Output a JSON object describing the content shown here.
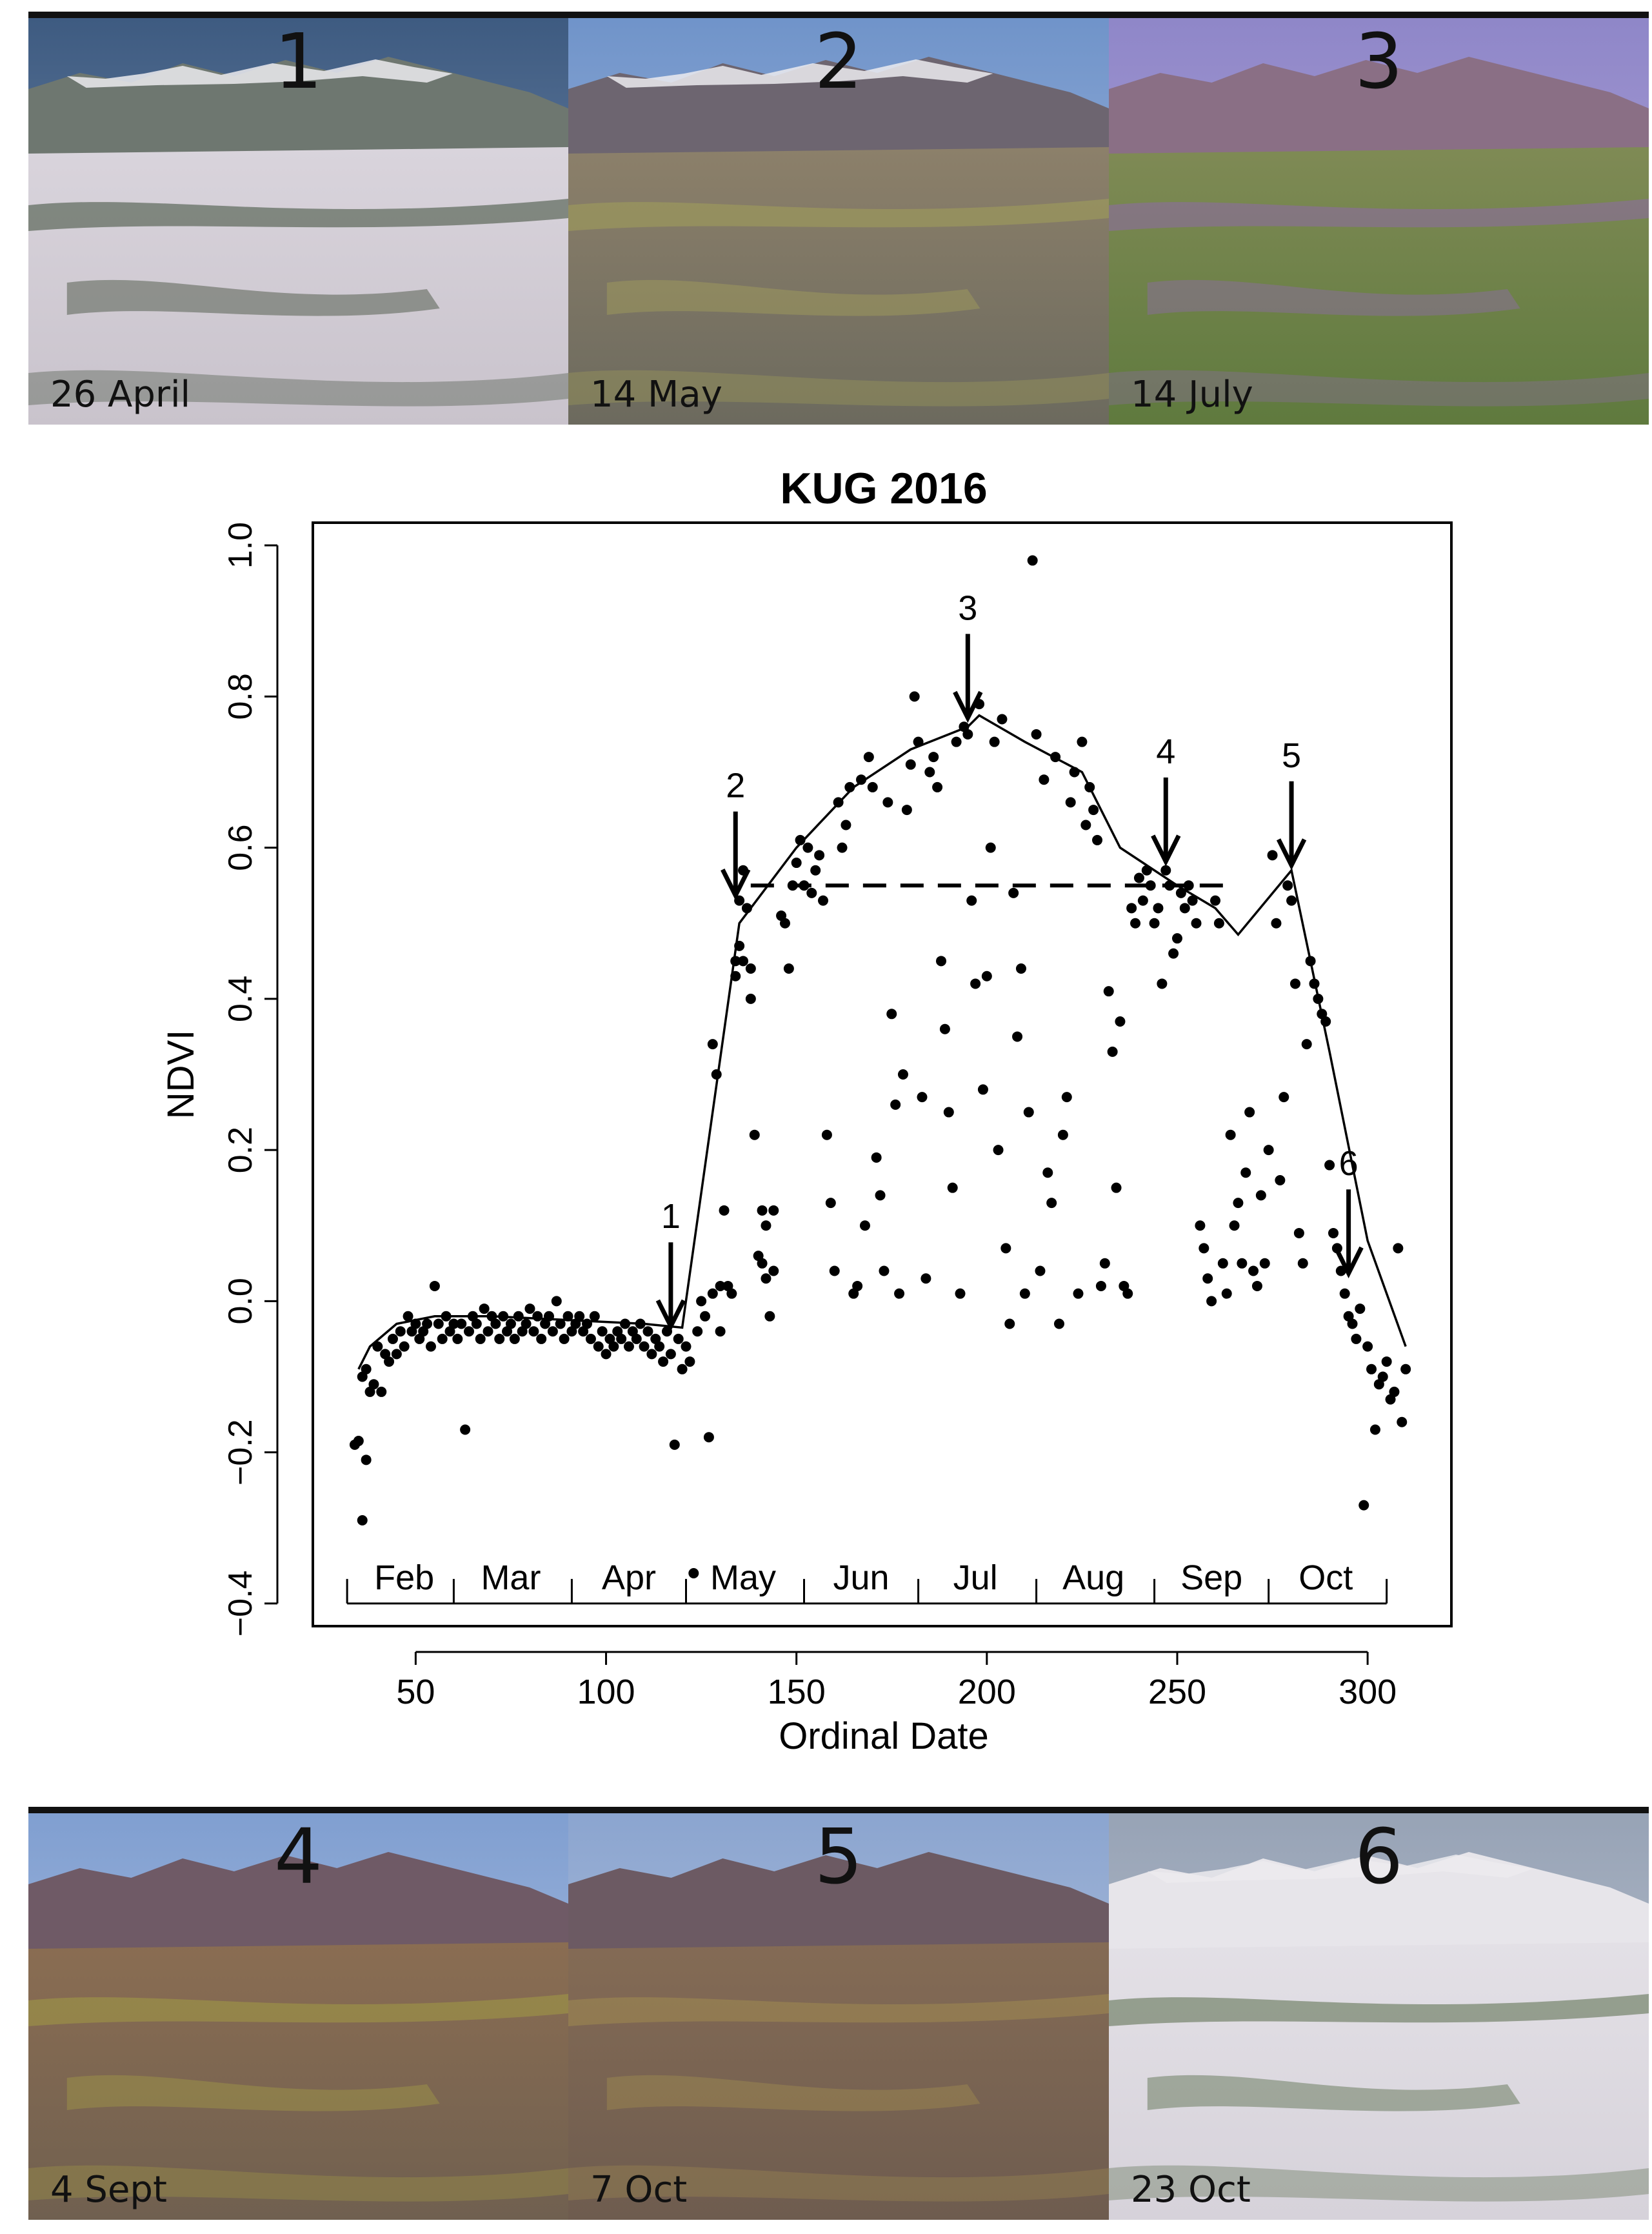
{
  "photos_top": [
    {
      "number": "1",
      "date": "26 April"
    },
    {
      "number": "2",
      "date": "14 May"
    },
    {
      "number": "3",
      "date": "14 July"
    }
  ],
  "photos_bottom": [
    {
      "number": "4",
      "date": "4 Sept"
    },
    {
      "number": "5",
      "date": "7 Oct"
    },
    {
      "number": "6",
      "date": "23 Oct"
    }
  ],
  "colors": {
    "points": "#000000",
    "line": "#000000",
    "frame": "#000000"
  },
  "chart_data": {
    "type": "scatter",
    "title": "KUG  2016",
    "xlabel": "Ordinal Date",
    "ylabel": "NDVI",
    "xlim": [
      23,
      322
    ],
    "ylim": [
      -0.43,
      1.03
    ],
    "xticks": [
      50,
      100,
      150,
      200,
      250,
      300
    ],
    "yticks": [
      -0.4,
      -0.2,
      0.0,
      0.2,
      0.4,
      0.6,
      0.8,
      1.0
    ],
    "ytick_labels": [
      "−0.4",
      "−0.2",
      "0.0",
      "0.2",
      "0.4",
      "0.6",
      "0.8",
      "1.0"
    ],
    "month_labels": [
      {
        "label": "Feb",
        "x": 47
      },
      {
        "label": "Mar",
        "x": 75
      },
      {
        "label": "Apr",
        "x": 106
      },
      {
        "label": "May",
        "x": 136
      },
      {
        "label": "Jun",
        "x": 167
      },
      {
        "label": "Jul",
        "x": 197
      },
      {
        "label": "Aug",
        "x": 228
      },
      {
        "label": "Sep",
        "x": 259
      },
      {
        "label": "Oct",
        "x": 289
      }
    ],
    "month_ticks": [
      32,
      60,
      91,
      121,
      152,
      182,
      213,
      244,
      274,
      305
    ],
    "fitted_curve": {
      "x": [
        35,
        38,
        45,
        55,
        70,
        90,
        110,
        120,
        135,
        150,
        165,
        180,
        195,
        198,
        210,
        225,
        235,
        250,
        260,
        266,
        280,
        290,
        300,
        310
      ],
      "y": [
        -0.09,
        -0.06,
        -0.03,
        -0.02,
        -0.02,
        -0.025,
        -0.03,
        -0.035,
        0.5,
        0.6,
        0.68,
        0.73,
        0.76,
        0.775,
        0.74,
        0.7,
        0.6,
        0.55,
        0.52,
        0.485,
        0.57,
        0.33,
        0.08,
        -0.06
      ]
    },
    "threshold_line": {
      "y": 0.55,
      "x_start": 138,
      "x_end": 262
    },
    "annotations": [
      {
        "label": "1",
        "x": 117,
        "y": -0.04
      },
      {
        "label": "2",
        "x": 134,
        "y": 0.53
      },
      {
        "label": "3",
        "x": 195,
        "y": 0.765
      },
      {
        "label": "4",
        "x": 247,
        "y": 0.575
      },
      {
        "label": "5",
        "x": 280,
        "y": 0.57
      },
      {
        "label": "6",
        "x": 295,
        "y": 0.03
      }
    ],
    "points": [
      [
        34,
        -0.19
      ],
      [
        35,
        -0.185
      ],
      [
        36,
        -0.29
      ],
      [
        37,
        -0.21
      ],
      [
        36,
        -0.1
      ],
      [
        37,
        -0.09
      ],
      [
        38,
        -0.12
      ],
      [
        39,
        -0.11
      ],
      [
        40,
        -0.06
      ],
      [
        41,
        -0.12
      ],
      [
        42,
        -0.07
      ],
      [
        43,
        -0.08
      ],
      [
        44,
        -0.05
      ],
      [
        45,
        -0.07
      ],
      [
        46,
        -0.04
      ],
      [
        47,
        -0.06
      ],
      [
        48,
        -0.02
      ],
      [
        49,
        -0.04
      ],
      [
        50,
        -0.03
      ],
      [
        51,
        -0.05
      ],
      [
        52,
        -0.04
      ],
      [
        53,
        -0.03
      ],
      [
        54,
        -0.06
      ],
      [
        55,
        0.02
      ],
      [
        56,
        -0.03
      ],
      [
        57,
        -0.05
      ],
      [
        58,
        -0.02
      ],
      [
        59,
        -0.04
      ],
      [
        60,
        -0.03
      ],
      [
        61,
        -0.05
      ],
      [
        62,
        -0.03
      ],
      [
        63,
        -0.17
      ],
      [
        64,
        -0.04
      ],
      [
        65,
        -0.02
      ],
      [
        66,
        -0.03
      ],
      [
        67,
        -0.05
      ],
      [
        68,
        -0.01
      ],
      [
        69,
        -0.04
      ],
      [
        70,
        -0.02
      ],
      [
        71,
        -0.03
      ],
      [
        72,
        -0.05
      ],
      [
        73,
        -0.02
      ],
      [
        74,
        -0.04
      ],
      [
        75,
        -0.03
      ],
      [
        76,
        -0.05
      ],
      [
        77,
        -0.02
      ],
      [
        78,
        -0.04
      ],
      [
        79,
        -0.03
      ],
      [
        80,
        -0.01
      ],
      [
        81,
        -0.04
      ],
      [
        82,
        -0.02
      ],
      [
        83,
        -0.05
      ],
      [
        84,
        -0.03
      ],
      [
        85,
        -0.02
      ],
      [
        86,
        -0.04
      ],
      [
        87,
        0.0
      ],
      [
        88,
        -0.03
      ],
      [
        89,
        -0.05
      ],
      [
        90,
        -0.02
      ],
      [
        91,
        -0.04
      ],
      [
        92,
        -0.03
      ],
      [
        93,
        -0.02
      ],
      [
        94,
        -0.04
      ],
      [
        95,
        -0.03
      ],
      [
        96,
        -0.05
      ],
      [
        97,
        -0.02
      ],
      [
        98,
        -0.06
      ],
      [
        99,
        -0.04
      ],
      [
        100,
        -0.07
      ],
      [
        101,
        -0.05
      ],
      [
        102,
        -0.06
      ],
      [
        103,
        -0.04
      ],
      [
        104,
        -0.05
      ],
      [
        105,
        -0.03
      ],
      [
        106,
        -0.06
      ],
      [
        107,
        -0.04
      ],
      [
        108,
        -0.05
      ],
      [
        109,
        -0.03
      ],
      [
        110,
        -0.06
      ],
      [
        111,
        -0.04
      ],
      [
        112,
        -0.07
      ],
      [
        113,
        -0.05
      ],
      [
        114,
        -0.06
      ],
      [
        115,
        -0.08
      ],
      [
        116,
        -0.04
      ],
      [
        117,
        -0.07
      ],
      [
        118,
        -0.19
      ],
      [
        119,
        -0.05
      ],
      [
        120,
        -0.09
      ],
      [
        121,
        -0.06
      ],
      [
        122,
        -0.08
      ],
      [
        123,
        -0.36
      ],
      [
        124,
        -0.04
      ],
      [
        125,
        0.0
      ],
      [
        126,
        -0.02
      ],
      [
        127,
        -0.18
      ],
      [
        128,
        0.01
      ],
      [
        128,
        0.34
      ],
      [
        129,
        0.3
      ],
      [
        130,
        0.02
      ],
      [
        130,
        -0.04
      ],
      [
        131,
        0.12
      ],
      [
        132,
        0.02
      ],
      [
        133,
        0.01
      ],
      [
        134,
        0.45
      ],
      [
        134,
        0.43
      ],
      [
        135,
        0.47
      ],
      [
        135,
        0.53
      ],
      [
        136,
        0.45
      ],
      [
        136,
        0.57
      ],
      [
        137,
        0.52
      ],
      [
        138,
        0.4
      ],
      [
        138,
        0.44
      ],
      [
        139,
        0.22
      ],
      [
        140,
        0.06
      ],
      [
        141,
        0.05
      ],
      [
        141,
        0.12
      ],
      [
        142,
        0.03
      ],
      [
        142,
        0.1
      ],
      [
        143,
        -0.02
      ],
      [
        144,
        0.04
      ],
      [
        144,
        0.12
      ],
      [
        146,
        0.51
      ],
      [
        147,
        0.5
      ],
      [
        148,
        0.44
      ],
      [
        149,
        0.55
      ],
      [
        150,
        0.58
      ],
      [
        151,
        0.61
      ],
      [
        152,
        0.55
      ],
      [
        153,
        0.6
      ],
      [
        154,
        0.54
      ],
      [
        155,
        0.57
      ],
      [
        156,
        0.59
      ],
      [
        157,
        0.53
      ],
      [
        158,
        0.22
      ],
      [
        159,
        0.13
      ],
      [
        160,
        0.04
      ],
      [
        161,
        0.66
      ],
      [
        162,
        0.6
      ],
      [
        163,
        0.63
      ],
      [
        164,
        0.68
      ],
      [
        165,
        0.01
      ],
      [
        166,
        0.02
      ],
      [
        167,
        0.69
      ],
      [
        168,
        0.1
      ],
      [
        169,
        0.72
      ],
      [
        170,
        0.68
      ],
      [
        171,
        0.19
      ],
      [
        172,
        0.14
      ],
      [
        173,
        0.04
      ],
      [
        174,
        0.66
      ],
      [
        175,
        0.38
      ],
      [
        176,
        0.26
      ],
      [
        177,
        0.01
      ],
      [
        178,
        0.3
      ],
      [
        179,
        0.65
      ],
      [
        180,
        0.71
      ],
      [
        181,
        0.8
      ],
      [
        182,
        0.74
      ],
      [
        183,
        0.27
      ],
      [
        184,
        0.03
      ],
      [
        185,
        0.7
      ],
      [
        186,
        0.72
      ],
      [
        187,
        0.68
      ],
      [
        188,
        0.45
      ],
      [
        189,
        0.36
      ],
      [
        190,
        0.25
      ],
      [
        191,
        0.15
      ],
      [
        192,
        0.74
      ],
      [
        193,
        0.01
      ],
      [
        194,
        0.76
      ],
      [
        195,
        0.75
      ],
      [
        196,
        0.53
      ],
      [
        197,
        0.42
      ],
      [
        198,
        0.79
      ],
      [
        199,
        0.28
      ],
      [
        200,
        0.43
      ],
      [
        201,
        0.6
      ],
      [
        202,
        0.74
      ],
      [
        203,
        0.2
      ],
      [
        204,
        0.77
      ],
      [
        205,
        0.07
      ],
      [
        206,
        -0.03
      ],
      [
        207,
        0.54
      ],
      [
        208,
        0.35
      ],
      [
        209,
        0.44
      ],
      [
        210,
        0.01
      ],
      [
        211,
        0.25
      ],
      [
        212,
        0.98
      ],
      [
        213,
        0.75
      ],
      [
        214,
        0.04
      ],
      [
        215,
        0.69
      ],
      [
        216,
        0.17
      ],
      [
        217,
        0.13
      ],
      [
        218,
        0.72
      ],
      [
        219,
        -0.03
      ],
      [
        220,
        0.22
      ],
      [
        221,
        0.27
      ],
      [
        222,
        0.66
      ],
      [
        223,
        0.7
      ],
      [
        224,
        0.01
      ],
      [
        225,
        0.74
      ],
      [
        226,
        0.63
      ],
      [
        227,
        0.68
      ],
      [
        228,
        0.65
      ],
      [
        229,
        0.61
      ],
      [
        230,
        0.02
      ],
      [
        231,
        0.05
      ],
      [
        232,
        0.41
      ],
      [
        233,
        0.33
      ],
      [
        234,
        0.15
      ],
      [
        235,
        0.37
      ],
      [
        236,
        0.02
      ],
      [
        237,
        0.01
      ],
      [
        238,
        0.52
      ],
      [
        239,
        0.5
      ],
      [
        240,
        0.56
      ],
      [
        241,
        0.53
      ],
      [
        242,
        0.57
      ],
      [
        243,
        0.55
      ],
      [
        244,
        0.5
      ],
      [
        245,
        0.52
      ],
      [
        246,
        0.42
      ],
      [
        247,
        0.57
      ],
      [
        248,
        0.55
      ],
      [
        249,
        0.46
      ],
      [
        250,
        0.48
      ],
      [
        251,
        0.54
      ],
      [
        252,
        0.52
      ],
      [
        253,
        0.55
      ],
      [
        254,
        0.53
      ],
      [
        255,
        0.5
      ],
      [
        256,
        0.1
      ],
      [
        257,
        0.07
      ],
      [
        258,
        0.03
      ],
      [
        259,
        0.0
      ],
      [
        260,
        0.53
      ],
      [
        261,
        0.5
      ],
      [
        262,
        0.05
      ],
      [
        263,
        0.01
      ],
      [
        264,
        0.22
      ],
      [
        265,
        0.1
      ],
      [
        266,
        0.13
      ],
      [
        267,
        0.05
      ],
      [
        268,
        0.17
      ],
      [
        269,
        0.25
      ],
      [
        270,
        0.04
      ],
      [
        271,
        0.02
      ],
      [
        272,
        0.14
      ],
      [
        273,
        0.05
      ],
      [
        274,
        0.2
      ],
      [
        275,
        0.59
      ],
      [
        276,
        0.5
      ],
      [
        277,
        0.16
      ],
      [
        278,
        0.27
      ],
      [
        279,
        0.55
      ],
      [
        280,
        0.53
      ],
      [
        281,
        0.42
      ],
      [
        282,
        0.09
      ],
      [
        283,
        0.05
      ],
      [
        284,
        0.34
      ],
      [
        285,
        0.45
      ],
      [
        286,
        0.42
      ],
      [
        287,
        0.4
      ],
      [
        288,
        0.38
      ],
      [
        289,
        0.37
      ],
      [
        290,
        0.18
      ],
      [
        291,
        0.09
      ],
      [
        292,
        0.07
      ],
      [
        293,
        0.04
      ],
      [
        294,
        0.01
      ],
      [
        295,
        -0.02
      ],
      [
        296,
        -0.03
      ],
      [
        297,
        -0.05
      ],
      [
        298,
        -0.01
      ],
      [
        299,
        -0.27
      ],
      [
        300,
        -0.06
      ],
      [
        301,
        -0.09
      ],
      [
        302,
        -0.17
      ],
      [
        303,
        -0.11
      ],
      [
        304,
        -0.1
      ],
      [
        305,
        -0.08
      ],
      [
        306,
        -0.13
      ],
      [
        307,
        -0.12
      ],
      [
        308,
        0.07
      ],
      [
        309,
        -0.16
      ],
      [
        310,
        -0.09
      ]
    ]
  }
}
